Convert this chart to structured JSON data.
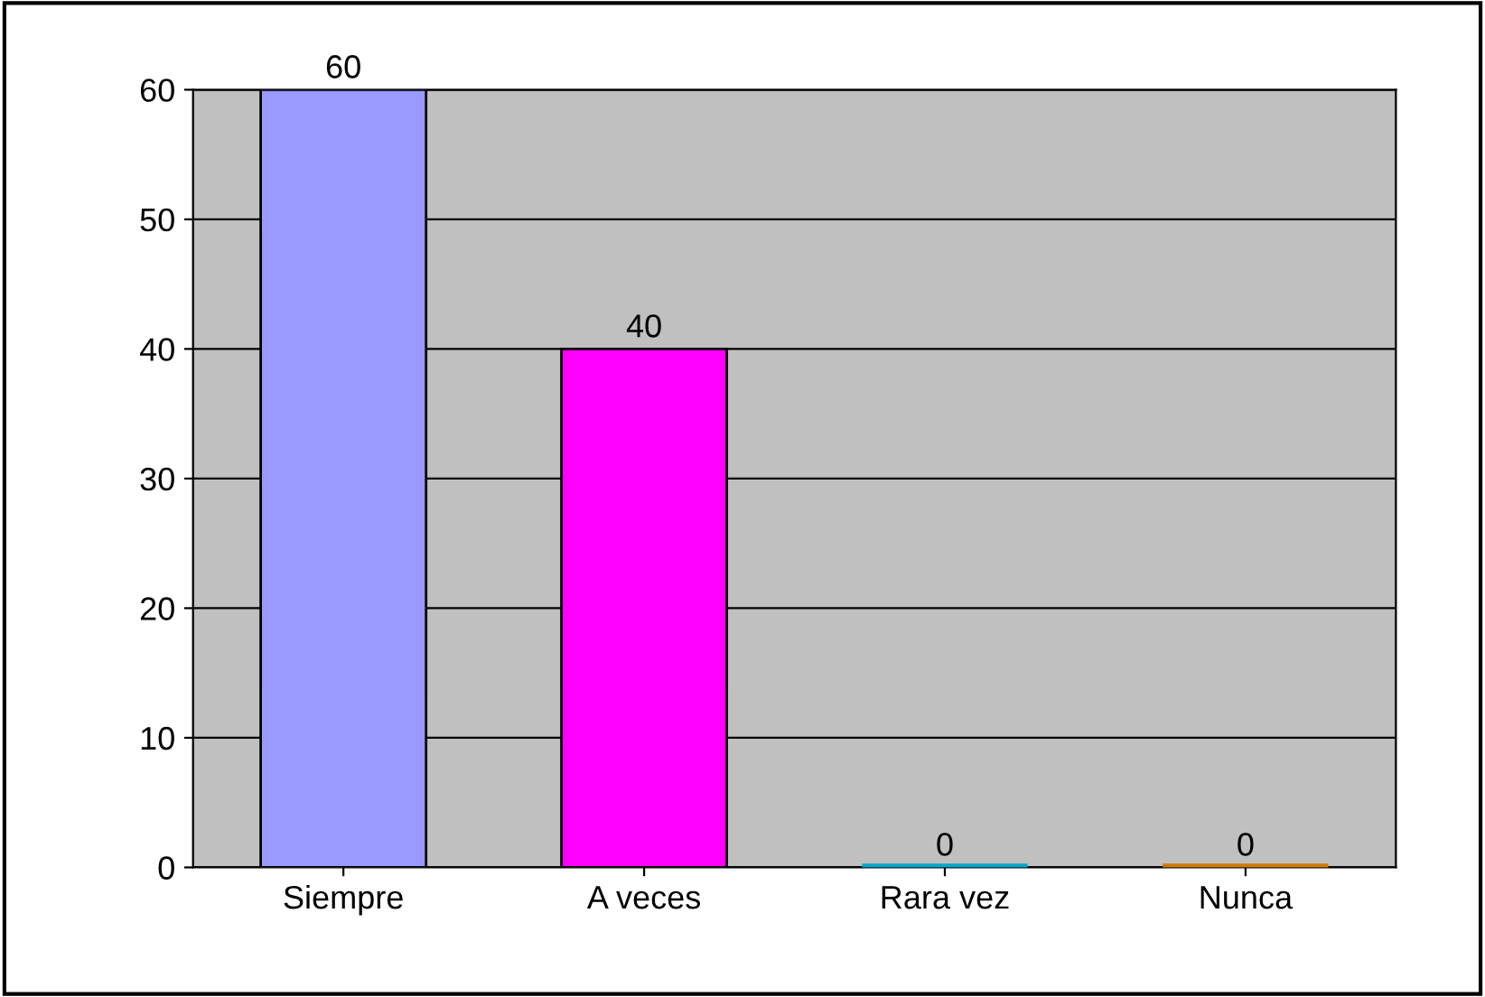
{
  "chart_data": {
    "type": "bar",
    "categories": [
      "Siempre",
      "A veces",
      "Rara vez",
      "Nunca"
    ],
    "values": [
      60,
      40,
      0,
      0
    ],
    "colors": [
      "#9999ff",
      "#ff00ff",
      "#00a6c8",
      "#cc7a00"
    ],
    "ylim": [
      0,
      60
    ],
    "yticks": [
      0,
      10,
      20,
      30,
      40,
      50,
      60
    ],
    "grid": "y",
    "data_labels": true,
    "legend": false
  }
}
